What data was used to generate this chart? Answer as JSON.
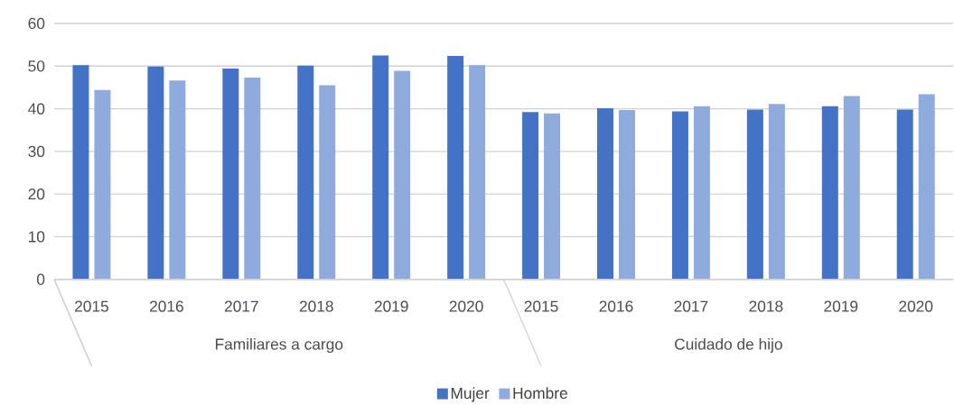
{
  "chart_data": {
    "type": "bar",
    "categories": [
      "2015",
      "2016",
      "2017",
      "2018",
      "2019",
      "2020",
      "2015",
      "2016",
      "2017",
      "2018",
      "2019",
      "2020"
    ],
    "annotations": [
      "Familiares a cargo",
      "Cuidado de hijo"
    ],
    "series": [
      {
        "name": "Mujer",
        "color": "#4472c4",
        "values": [
          50.2,
          49.9,
          49.4,
          50.1,
          52.5,
          52.4,
          39.2,
          40.1,
          39.4,
          39.8,
          40.6,
          39.8
        ]
      },
      {
        "name": "Hombre",
        "color": "#8faadc",
        "values": [
          44.4,
          46.6,
          47.3,
          45.5,
          48.9,
          50.2,
          38.9,
          39.7,
          40.6,
          41.1,
          43.0,
          43.4
        ]
      }
    ],
    "ylim": [
      0,
      60
    ],
    "yticks": [
      0,
      10,
      20,
      30,
      40,
      50,
      60
    ],
    "grid": "y",
    "legend": "bottom"
  }
}
